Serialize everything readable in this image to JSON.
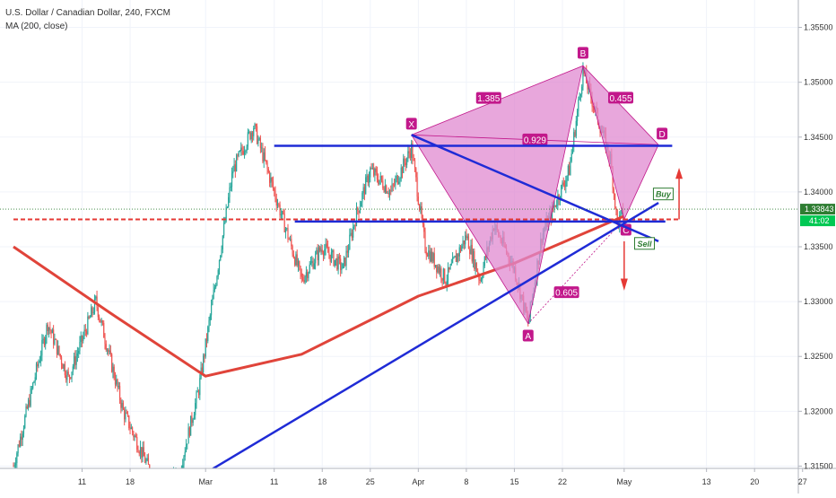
{
  "legend": {
    "symbol_title": "U.S. Dollar / Canadian Dollar, 240, FXCM",
    "ma_label": "MA (200, close)"
  },
  "price_axis": {
    "ticks": [
      "1.35500",
      "1.35000",
      "1.34500",
      "1.34000",
      "1.33500",
      "1.33000",
      "1.32500",
      "1.32000",
      "1.31500"
    ],
    "last_price_label": "1.33843",
    "countdown_label": "41:02"
  },
  "time_axis": {
    "ticks": [
      "11",
      "18",
      "Mar",
      "11",
      "18",
      "25",
      "Apr",
      "8",
      "15",
      "22",
      "May",
      "13",
      "20",
      "27"
    ]
  },
  "colors": {
    "up_candle": "#26a69a",
    "down_candle": "#ef5350",
    "ma_line": "#e0443a",
    "pattern_fill": "#e08ad0",
    "pattern_label": "#c2188b",
    "trend_line": "#1f2bd6",
    "support_line": "#e53935",
    "last_price": "#2e7d32",
    "countdown": "#00c853",
    "arrow": "#e53935"
  },
  "chart_data": {
    "type": "candlestick",
    "title": "U.S. Dollar / Canadian Dollar, 240, FXCM",
    "indicator": "MA (200, close)",
    "ylim": [
      1.3125,
      1.3575
    ],
    "y_ticks": [
      1.355,
      1.35,
      1.345,
      1.34,
      1.335,
      1.33,
      1.325,
      1.32,
      1.315
    ],
    "x_ticks": [
      "11",
      "18",
      "Mar",
      "11",
      "18",
      "25",
      "Apr",
      "8",
      "15",
      "22",
      "May",
      "13",
      "20",
      "27"
    ],
    "last_price": 1.33843,
    "price_path": [
      [
        "1 Feb",
        1.315
      ],
      [
        "6 Feb",
        1.328
      ],
      [
        "9 Feb",
        1.323
      ],
      [
        "13 Feb",
        1.33
      ],
      [
        "17 Feb",
        1.32
      ],
      [
        "22 Feb",
        1.313
      ],
      [
        "25 Feb",
        1.314
      ],
      [
        "28 Feb",
        1.322
      ],
      [
        "2 Mar",
        1.33
      ],
      [
        "5 Mar",
        1.342
      ],
      [
        "8 Mar",
        1.346
      ],
      [
        "11 Mar",
        1.34
      ],
      [
        "13 Mar",
        1.336
      ],
      [
        "15 Mar",
        1.332
      ],
      [
        "18 Mar",
        1.335
      ],
      [
        "21 Mar",
        1.333
      ],
      [
        "23 Mar",
        1.338
      ],
      [
        "25 Mar",
        1.342
      ],
      [
        "28 Mar",
        1.34
      ],
      [
        "31 Mar",
        1.344
      ],
      [
        "2 Apr",
        1.335
      ],
      [
        "5 Apr",
        1.332
      ],
      [
        "8 Apr",
        1.336
      ],
      [
        "10 Apr",
        1.332
      ],
      [
        "12 Apr",
        1.337
      ],
      [
        "15 Apr",
        1.333
      ],
      [
        "17 Apr",
        1.328
      ],
      [
        "19 Apr",
        1.336
      ],
      [
        "21 Apr",
        1.339
      ],
      [
        "23 Apr",
        1.342
      ],
      [
        "25 Apr",
        1.351
      ],
      [
        "27 Apr",
        1.347
      ],
      [
        "29 Apr",
        1.343
      ],
      [
        "30 Apr",
        1.337
      ],
      [
        "1 May",
        1.3384
      ]
    ],
    "ma_200": [
      [
        "1 Feb",
        1.335
      ],
      [
        "15 Feb",
        1.329
      ],
      [
        "1 Mar",
        1.3232
      ],
      [
        "15 Mar",
        1.3252
      ],
      [
        "1 Apr",
        1.3305
      ],
      [
        "15 Apr",
        1.3335
      ],
      [
        "1 May",
        1.3378
      ]
    ],
    "harmonic_pattern": {
      "points": [
        {
          "label": "X",
          "date": "31 Mar",
          "price": 1.3452
        },
        {
          "label": "A",
          "date": "17 Apr",
          "price": 1.328
        },
        {
          "label": "B",
          "date": "25 Apr",
          "price": 1.3515
        },
        {
          "label": "C",
          "date": "1 May",
          "price": 1.3375
        },
        {
          "label": "D",
          "date": "6 May",
          "price": 1.3443
        }
      ],
      "ratios": [
        {
          "label": "1.385",
          "leg": "XB"
        },
        {
          "label": "0.455",
          "leg": "BD"
        },
        {
          "label": "0.929",
          "leg": "XD"
        },
        {
          "label": "0.605",
          "leg": "AC"
        }
      ]
    },
    "drawings": {
      "horizontal_lines": [
        {
          "price": 1.3442,
          "from": "11 Mar",
          "to": "8 May",
          "color": "blue"
        },
        {
          "price": 1.3373,
          "from": "14 Mar",
          "to": "7 May",
          "color": "blue"
        },
        {
          "price": 1.3375,
          "from": "1 Feb",
          "to": "9 May",
          "color": "red",
          "style": "dashed"
        }
      ],
      "trend_lines": [
        {
          "from": [
            "24 Feb",
            1.3125
          ],
          "to": [
            "6 May",
            1.339
          ]
        },
        {
          "from": [
            "31 Mar",
            1.3452
          ],
          "to": [
            "6 May",
            1.3355
          ]
        }
      ],
      "signals": [
        {
          "label": "Buy",
          "date": "5 May",
          "price": 1.3392,
          "arrow": "up"
        },
        {
          "label": "Sell",
          "date": "2 May",
          "price": 1.336,
          "arrow": "down"
        }
      ]
    }
  }
}
